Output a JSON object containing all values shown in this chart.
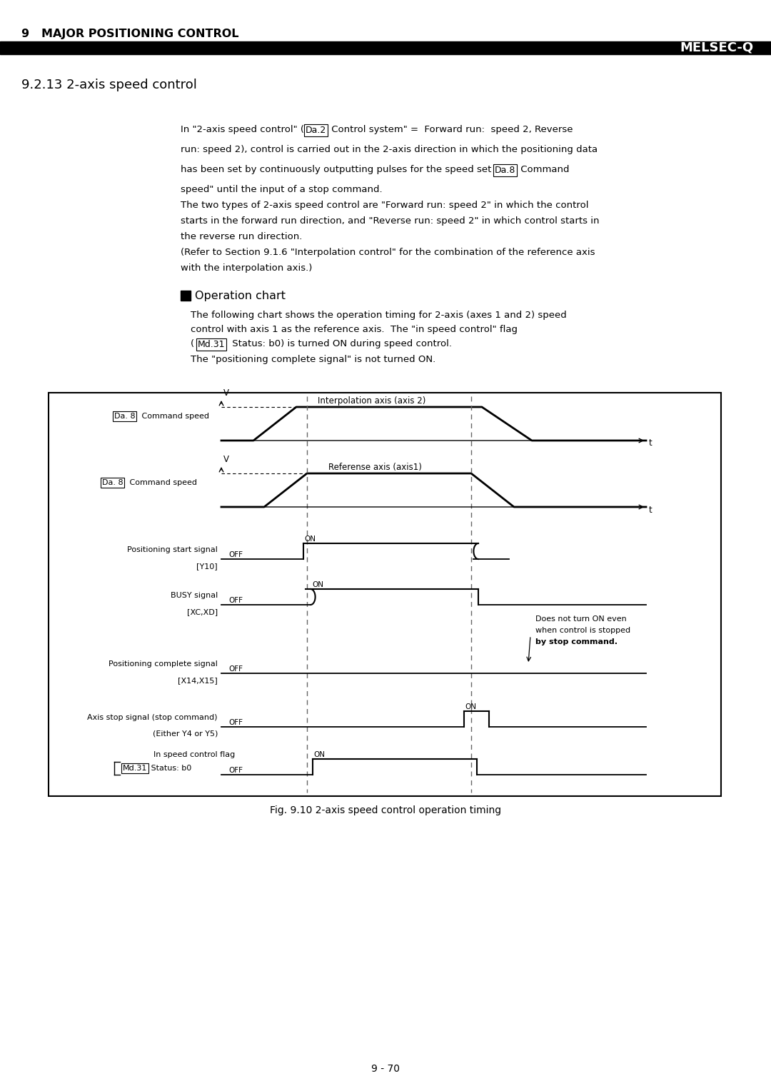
{
  "page_title": "9   MAJOR POSITIONING CONTROL",
  "brand": "MELSEC-Q",
  "section_title": "9.2.13 2-axis speed control",
  "fig_caption": "Fig. 9.10 2-axis speed control operation timing",
  "page_number": "9 - 70",
  "background_color": "#ffffff"
}
